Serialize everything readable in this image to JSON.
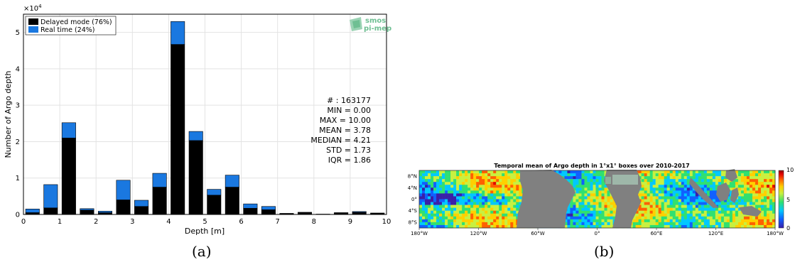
{
  "chart_data": [
    {
      "type": "bar",
      "stacked": true,
      "title": "",
      "xlabel": "Depth [m]",
      "ylabel": "Number of Argo depth",
      "y_exponent_label": "×10^4",
      "xlim": [
        0,
        10
      ],
      "ylim": [
        0,
        5.5
      ],
      "xticks": [
        0,
        1,
        2,
        3,
        4,
        5,
        6,
        7,
        8,
        9,
        10
      ],
      "yticks": [
        0,
        1,
        2,
        3,
        4,
        5
      ],
      "grid": true,
      "legend_position": "top-left",
      "x": [
        0.25,
        0.75,
        1.25,
        1.75,
        2.25,
        2.75,
        3.25,
        3.75,
        4.25,
        4.75,
        5.25,
        5.75,
        6.25,
        6.75,
        7.25,
        7.75,
        8.25,
        8.75,
        9.25,
        9.75
      ],
      "series": [
        {
          "name": "Delayed mode (76%)",
          "color": "#000000",
          "values": [
            0.05,
            0.18,
            2.1,
            0.12,
            0.05,
            0.4,
            0.22,
            0.75,
            4.67,
            2.03,
            0.53,
            0.75,
            0.17,
            0.13,
            0.02,
            0.05,
            0.01,
            0.04,
            0.06,
            0.03
          ]
        },
        {
          "name": "Real time (24%)",
          "color": "#1a78e0",
          "values": [
            0.1,
            0.64,
            0.42,
            0.04,
            0.04,
            0.54,
            0.17,
            0.38,
            0.63,
            0.25,
            0.16,
            0.33,
            0.12,
            0.09,
            0.01,
            0.01,
            0.0,
            0.01,
            0.02,
            0.01
          ]
        }
      ],
      "stats": [
        "# : 163177",
        "MIN = 0.00",
        "MAX =  10.00",
        "MEAN = 3.78",
        "MEDIAN = 4.21",
        "STD = 1.73",
        "IQR = 1.86"
      ],
      "logo": [
        "smos",
        "pi-mep"
      ],
      "caption": "(a)"
    },
    {
      "type": "heatmap",
      "title": "Temporal mean of Argo depth in 1°x1° boxes over 2010-2017",
      "xticks": [
        "180°W",
        "120°W",
        "60°W",
        "0°",
        "60°E",
        "120°E",
        "180°W"
      ],
      "yticks": [
        "8°N",
        "4°N",
        "0°",
        "4°S",
        "8°S"
      ],
      "colorbar_range": [
        0,
        10
      ],
      "colorbar_ticks": [
        "10",
        "5",
        "0"
      ],
      "colormap": [
        "#3a1fa8",
        "#1060ff",
        "#00c8ff",
        "#30e070",
        "#c8f040",
        "#ffd000",
        "#ff6000",
        "#e00000",
        "#8a0000"
      ],
      "land_color": "#808080",
      "caption": "(b)"
    }
  ]
}
